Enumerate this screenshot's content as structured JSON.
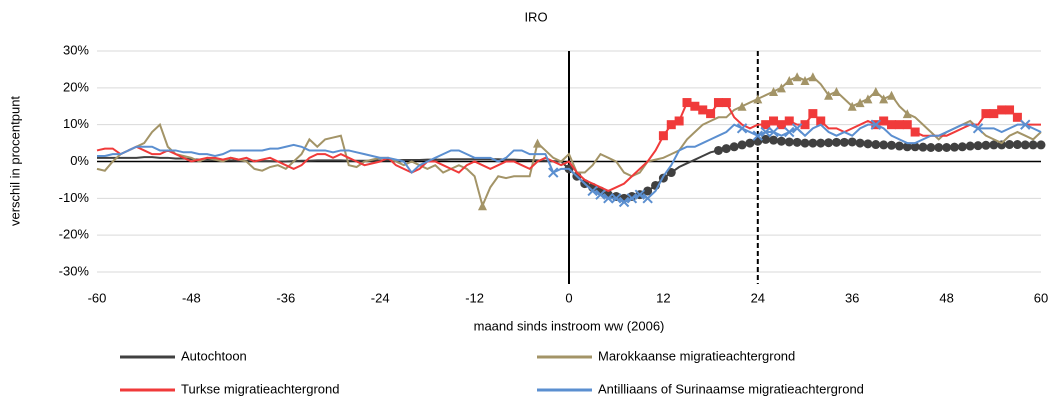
{
  "chart_data": {
    "type": "line",
    "title": "IRO",
    "x_label": "maand sinds instroom ww (2006)",
    "y_label": "verschil in procentpunt",
    "x": [
      -60,
      -59,
      -58,
      -57,
      -56,
      -55,
      -54,
      -53,
      -52,
      -51,
      -50,
      -49,
      -48,
      -47,
      -46,
      -45,
      -44,
      -43,
      -42,
      -41,
      -40,
      -39,
      -38,
      -37,
      -36,
      -35,
      -34,
      -33,
      -32,
      -31,
      -30,
      -29,
      -28,
      -27,
      -26,
      -25,
      -24,
      -23,
      -22,
      -21,
      -20,
      -19,
      -18,
      -17,
      -16,
      -15,
      -14,
      -13,
      -12,
      -11,
      -10,
      -9,
      -8,
      -7,
      -6,
      -5,
      -4,
      -3,
      -2,
      -1,
      0,
      1,
      2,
      3,
      4,
      5,
      6,
      7,
      8,
      9,
      10,
      11,
      12,
      13,
      14,
      15,
      16,
      17,
      18,
      19,
      20,
      21,
      22,
      23,
      24,
      25,
      26,
      27,
      28,
      29,
      30,
      31,
      32,
      33,
      34,
      35,
      36,
      37,
      38,
      39,
      40,
      41,
      42,
      43,
      44,
      45,
      46,
      47,
      48,
      49,
      50,
      51,
      52,
      53,
      54,
      55,
      56,
      57,
      58,
      59,
      60
    ],
    "xlim": [
      -60,
      60
    ],
    "xticks": [
      -60,
      -48,
      -36,
      -24,
      -12,
      0,
      12,
      24,
      36,
      48,
      60
    ],
    "ylim": [
      -30,
      30
    ],
    "yticks": [
      {
        "value": -30,
        "label": "-30%"
      },
      {
        "value": -20,
        "label": "-20%"
      },
      {
        "value": -10,
        "label": "-10%"
      },
      {
        "value": 0,
        "label": "0%"
      },
      {
        "value": 10,
        "label": "10%"
      },
      {
        "value": 20,
        "label": "20%"
      },
      {
        "value": 30,
        "label": "30%"
      }
    ],
    "grid": true,
    "legend": "bottom",
    "reference_lines": [
      {
        "x": 0,
        "style": "solid"
      },
      {
        "x": 24,
        "style": "dashed"
      }
    ],
    "series": [
      {
        "name": "Autochtoon",
        "color": "#404040",
        "marker": "circle",
        "values": [
          1,
          1,
          1,
          1,
          1,
          1,
          1.2,
          1.2,
          1,
          1,
          0.8,
          0.8,
          0.6,
          0.5,
          0.5,
          0.4,
          0.3,
          0.3,
          0.2,
          0.2,
          0.2,
          0.1,
          0.1,
          0,
          0,
          0.1,
          0.2,
          0.2,
          0.3,
          0.3,
          0.3,
          0.3,
          0.2,
          0.2,
          0.2,
          0.2,
          0.3,
          0.3,
          0.3,
          0.4,
          0.4,
          0.4,
          0.5,
          0.5,
          0.5,
          0.6,
          0.6,
          0.6,
          0.6,
          0.6,
          0.6,
          0.6,
          0.5,
          0.5,
          0.4,
          0.4,
          0.3,
          0.2,
          0.1,
          0,
          -2,
          -4,
          -6,
          -7,
          -8,
          -9,
          -9.5,
          -10,
          -9.5,
          -9,
          -8,
          -6.5,
          -4.5,
          -3,
          -1.5,
          -0.5,
          0.5,
          1.5,
          2.5,
          3,
          3.5,
          4,
          4.5,
          5,
          5.5,
          6,
          5.8,
          5.5,
          5.3,
          5.2,
          5,
          5,
          5,
          5.1,
          5.2,
          5.2,
          5.3,
          5,
          4.8,
          4.6,
          4.5,
          4.4,
          4.2,
          4,
          4,
          3.9,
          3.8,
          3.8,
          3.8,
          3.9,
          4,
          4.2,
          4.3,
          4.4,
          4.5,
          4.5,
          4.6,
          4.6,
          4.5,
          4.5,
          4.5
        ],
        "markers": [
          0,
          1,
          2,
          3,
          4,
          5,
          6,
          7,
          8,
          9,
          10,
          11,
          12,
          13,
          19,
          20,
          21,
          22,
          23,
          24,
          25,
          26,
          27,
          28,
          29,
          30,
          31,
          32,
          33,
          34,
          35,
          36,
          37,
          38,
          39,
          40,
          41,
          42,
          43,
          44,
          45,
          46,
          47,
          48,
          49,
          50,
          51,
          52,
          53,
          54,
          55,
          56,
          57,
          58,
          59,
          60
        ]
      },
      {
        "name": "Marokkaanse migratieachtergrond",
        "color": "#a39467",
        "marker": "triangle",
        "values": [
          -2,
          -2.5,
          0,
          2,
          3,
          4,
          5,
          8,
          10,
          4,
          2,
          1.5,
          1,
          0,
          1,
          0.5,
          0,
          1,
          0.5,
          0,
          -2,
          -2.5,
          -1.5,
          -1,
          -2,
          0,
          2,
          6,
          4,
          6,
          6.5,
          7,
          -1,
          -1.5,
          0,
          0.5,
          1,
          1,
          0,
          -1,
          0,
          -1,
          -2,
          -1,
          -3,
          -2,
          -1,
          -2,
          -4,
          -12,
          -7,
          -4,
          -4.5,
          -4,
          -4,
          -4,
          5,
          3,
          1,
          0,
          2,
          -3,
          -3,
          -1,
          2,
          1,
          0,
          -3,
          -4,
          -3,
          0,
          0.5,
          1,
          2,
          3,
          6,
          8,
          10,
          11,
          12,
          12,
          14,
          15,
          16,
          17,
          18,
          19,
          20,
          22,
          23,
          22,
          23,
          21,
          18,
          19,
          17,
          15,
          16,
          17,
          19,
          17,
          18,
          15,
          13,
          12,
          10,
          8,
          6,
          8,
          9,
          10,
          11,
          9,
          7,
          6,
          5,
          7,
          8,
          7,
          6,
          8
        ],
        "markers": [
          -11,
          -4,
          22,
          24,
          26,
          27,
          28,
          29,
          30,
          31,
          33,
          34,
          36,
          37,
          38,
          39,
          40,
          41,
          43
        ]
      },
      {
        "name": "Turkse migratieachtergrond",
        "color": "#f03a3a",
        "marker": "square",
        "values": [
          3,
          3.5,
          3.5,
          2,
          3,
          4,
          3,
          2,
          2,
          3,
          2,
          1,
          0,
          0.5,
          1,
          1,
          0.5,
          1,
          0.5,
          1,
          0,
          0.5,
          1,
          0,
          -1,
          -2,
          -1,
          1,
          2,
          2,
          1,
          2,
          1,
          0,
          -1,
          -0.5,
          0,
          1,
          -1,
          -2,
          -3,
          -2,
          0,
          0,
          -1,
          -2,
          -3,
          -1,
          0,
          -1,
          -2,
          -1,
          0,
          0,
          -1,
          -2,
          0,
          1,
          0,
          -1,
          0,
          -3,
          -5,
          -6,
          -7,
          -8,
          -7,
          -6,
          -4,
          -2,
          0,
          3,
          7,
          10,
          11,
          16,
          15,
          14,
          13,
          16,
          16,
          12,
          10,
          9,
          10,
          10,
          11,
          10,
          11,
          10,
          10,
          13,
          11,
          9,
          9,
          8,
          9,
          10,
          11,
          10,
          11,
          10,
          10,
          10,
          8,
          7,
          7,
          7,
          7,
          8,
          9,
          10,
          10,
          13,
          13,
          14,
          14,
          12,
          10,
          10,
          10
        ],
        "markers": [
          12,
          13,
          14,
          15,
          16,
          17,
          18,
          19,
          20,
          25,
          26,
          27,
          28,
          30,
          31,
          32,
          39,
          40,
          41,
          42,
          43,
          44,
          53,
          54,
          55,
          56,
          57
        ]
      },
      {
        "name": "Antilliaans of Surinaamse migratieachtergrond",
        "color": "#5b8fd0",
        "marker": "x",
        "values": [
          1.5,
          1.5,
          2,
          2,
          3,
          4,
          4,
          4,
          3,
          3,
          3,
          2.5,
          2.5,
          2,
          2,
          1.5,
          2,
          3,
          3,
          3,
          3,
          3,
          3.5,
          3.5,
          4,
          4.5,
          4,
          3,
          3,
          3,
          2.5,
          3,
          3,
          2.5,
          2,
          1.5,
          1,
          1,
          0.5,
          0,
          -3,
          -1,
          0,
          1,
          2,
          3,
          3,
          2,
          1,
          1,
          1,
          0,
          1,
          3,
          3,
          2,
          2,
          2,
          -3,
          -2,
          -2,
          -4,
          -6,
          -8,
          -9,
          -10,
          -10,
          -11,
          -10,
          -9,
          -10,
          -8,
          -4,
          -1,
          3,
          4,
          4,
          5,
          6,
          7,
          8,
          10,
          9,
          8,
          7,
          8,
          8,
          7,
          8,
          9,
          7,
          9,
          10,
          8,
          7,
          8,
          7,
          9,
          10,
          10,
          9,
          7,
          6,
          5,
          5,
          6,
          7,
          7,
          8,
          9,
          10,
          10,
          9,
          9,
          9,
          8,
          9,
          10,
          10,
          9,
          8
        ],
        "markers": [
          -2,
          3,
          4,
          5,
          6,
          7,
          8,
          9,
          10,
          22,
          24,
          25,
          26,
          28,
          29,
          39,
          52,
          58
        ]
      }
    ]
  }
}
